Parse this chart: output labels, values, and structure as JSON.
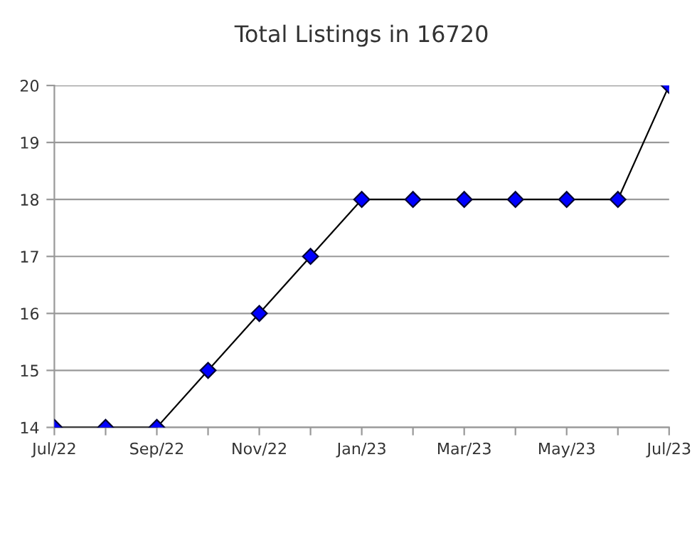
{
  "chart_data": {
    "type": "line",
    "title": "Total Listings in 16720",
    "categories": [
      "Jul/22",
      null,
      "Sep/22",
      null,
      "Nov/22",
      null,
      "Jan/23",
      null,
      "Mar/23",
      null,
      "May/23",
      null,
      "Jul/23"
    ],
    "series": [
      {
        "color": "#0000ff",
        "values": [
          14,
          14,
          14,
          15,
          16,
          17,
          18,
          18,
          18,
          18,
          18,
          18,
          20
        ]
      }
    ],
    "ylim": [
      14,
      20
    ],
    "yticks": [
      14,
      15,
      16,
      17,
      18,
      19,
      20
    ],
    "grid": "y",
    "marker": "diamond",
    "line_style": "solid",
    "legend": false
  }
}
